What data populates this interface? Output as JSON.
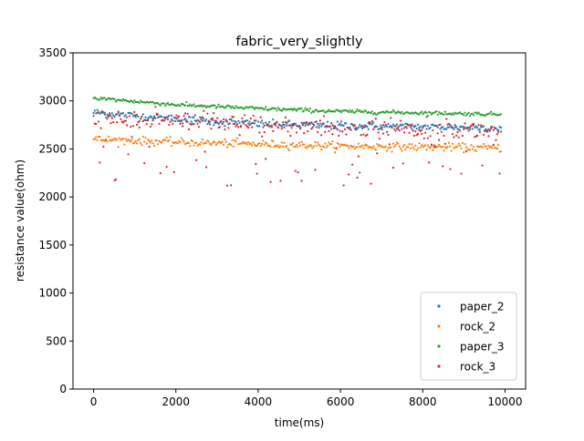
{
  "chart_data": {
    "type": "scatter",
    "title": "fabric_very_slightly",
    "xlabel": "time(ms)",
    "ylabel": "resistance value(ohm)",
    "xlim": [
      -500,
      10500
    ],
    "ylim": [
      0,
      3500
    ],
    "xticks": [
      0,
      2000,
      4000,
      6000,
      8000,
      10000
    ],
    "yticks": [
      0,
      500,
      1000,
      1500,
      2000,
      2500,
      3000,
      3500
    ],
    "xtick_labels": [
      "0",
      "2000",
      "4000",
      "6000",
      "8000",
      "10000"
    ],
    "ytick_labels": [
      "0",
      "500",
      "1000",
      "1500",
      "2000",
      "2500",
      "3000",
      "3500"
    ],
    "grid": false,
    "legend_position": "lower-right",
    "x_range_of_samples": [
      0,
      9900
    ],
    "series": [
      {
        "name": "paper_2",
        "color": "#1f77b4",
        "trend": [
          [
            0,
            2880
          ],
          [
            2000,
            2810
          ],
          [
            4000,
            2760
          ],
          [
            6000,
            2740
          ],
          [
            8000,
            2730
          ],
          [
            9900,
            2720
          ]
        ],
        "spread": 40
      },
      {
        "name": "rock_2",
        "color": "#ff7f0e",
        "trend": [
          [
            0,
            2600
          ],
          [
            2000,
            2570
          ],
          [
            4000,
            2550
          ],
          [
            6000,
            2530
          ],
          [
            8000,
            2520
          ],
          [
            9900,
            2510
          ]
        ],
        "spread": 40
      },
      {
        "name": "paper_3",
        "color": "#2ca02c",
        "trend": [
          [
            0,
            3030
          ],
          [
            2000,
            2960
          ],
          [
            4000,
            2920
          ],
          [
            6000,
            2890
          ],
          [
            8000,
            2875
          ],
          [
            9900,
            2860
          ]
        ],
        "spread": 20
      },
      {
        "name": "rock_3",
        "color": "#d62728",
        "trend": [
          [
            0,
            2820
          ],
          [
            2000,
            2780
          ],
          [
            4000,
            2740
          ],
          [
            6000,
            2720
          ],
          [
            8000,
            2700
          ],
          [
            9900,
            2690
          ]
        ],
        "spread": 110,
        "outlier_low": 2100
      }
    ]
  }
}
